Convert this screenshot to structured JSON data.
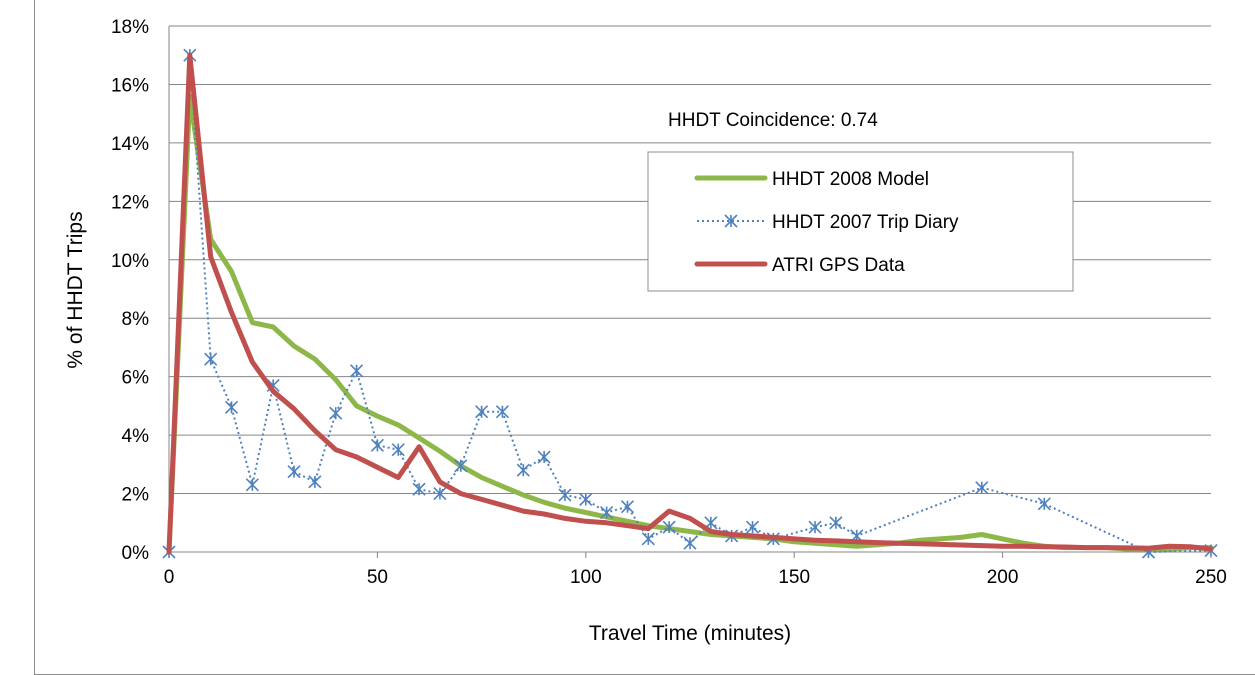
{
  "chart_data": {
    "type": "line",
    "title": "",
    "xlabel": "Travel Time (minutes)",
    "ylabel": "% of HHDT Trips",
    "xlim": [
      0,
      250
    ],
    "ylim": [
      0,
      18
    ],
    "x_ticks": [
      0,
      50,
      100,
      150,
      200,
      250
    ],
    "x_tick_labels": [
      "0",
      "50",
      "100",
      "150",
      "200",
      "250"
    ],
    "y_ticks": [
      0,
      2,
      4,
      6,
      8,
      10,
      12,
      14,
      16,
      18
    ],
    "y_tick_labels": [
      "0%",
      "2%",
      "4%",
      "6%",
      "8%",
      "10%",
      "12%",
      "14%",
      "16%",
      "18%"
    ],
    "grid": "horizontal",
    "legend_position": "upper-right",
    "annotation": "HHDT Coincidence: 0.74",
    "series": [
      {
        "name": "HHDT 2008 Model",
        "color": "#8db849",
        "style": "solid",
        "marker": "none",
        "points": [
          [
            0,
            0
          ],
          [
            5,
            15.6
          ],
          [
            10,
            10.7
          ],
          [
            15,
            9.6
          ],
          [
            20,
            7.85
          ],
          [
            25,
            7.7
          ],
          [
            30,
            7.05
          ],
          [
            35,
            6.6
          ],
          [
            40,
            5.9
          ],
          [
            45,
            5.0
          ],
          [
            50,
            4.65
          ],
          [
            55,
            4.35
          ],
          [
            60,
            3.9
          ],
          [
            65,
            3.45
          ],
          [
            70,
            2.95
          ],
          [
            75,
            2.55
          ],
          [
            80,
            2.25
          ],
          [
            85,
            1.95
          ],
          [
            90,
            1.7
          ],
          [
            95,
            1.5
          ],
          [
            100,
            1.35
          ],
          [
            105,
            1.2
          ],
          [
            110,
            1.05
          ],
          [
            115,
            0.9
          ],
          [
            120,
            0.8
          ],
          [
            125,
            0.7
          ],
          [
            130,
            0.6
          ],
          [
            135,
            0.55
          ],
          [
            140,
            0.5
          ],
          [
            145,
            0.45
          ],
          [
            150,
            0.35
          ],
          [
            155,
            0.3
          ],
          [
            160,
            0.25
          ],
          [
            165,
            0.2
          ],
          [
            170,
            0.25
          ],
          [
            175,
            0.3
          ],
          [
            180,
            0.4
          ],
          [
            185,
            0.45
          ],
          [
            190,
            0.5
          ],
          [
            195,
            0.6
          ],
          [
            200,
            0.45
          ],
          [
            205,
            0.3
          ],
          [
            210,
            0.2
          ],
          [
            215,
            0.15
          ],
          [
            220,
            0.15
          ],
          [
            225,
            0.15
          ],
          [
            230,
            0.1
          ],
          [
            235,
            0.1
          ],
          [
            240,
            0.1
          ],
          [
            245,
            0.15
          ],
          [
            250,
            0.15
          ]
        ]
      },
      {
        "name": "HHDT 2007 Trip Diary",
        "color": "#4f81bd",
        "style": "dotted",
        "marker": "asterisk",
        "points": [
          [
            0,
            0
          ],
          [
            5,
            17.0
          ],
          [
            10,
            6.6
          ],
          [
            15,
            4.95
          ],
          [
            20,
            2.3
          ],
          [
            25,
            5.7
          ],
          [
            30,
            2.75
          ],
          [
            35,
            2.4
          ],
          [
            40,
            4.75
          ],
          [
            45,
            6.2
          ],
          [
            50,
            3.65
          ],
          [
            55,
            3.5
          ],
          [
            60,
            2.15
          ],
          [
            65,
            2.0
          ],
          [
            70,
            2.95
          ],
          [
            75,
            4.8
          ],
          [
            80,
            4.8
          ],
          [
            85,
            2.8
          ],
          [
            90,
            3.25
          ],
          [
            95,
            1.95
          ],
          [
            100,
            1.8
          ],
          [
            105,
            1.35
          ],
          [
            110,
            1.55
          ],
          [
            115,
            0.45
          ],
          [
            120,
            0.85
          ],
          [
            125,
            0.3
          ],
          [
            130,
            1.0
          ],
          [
            135,
            0.55
          ],
          [
            140,
            0.85
          ],
          [
            145,
            0.45
          ],
          [
            155,
            0.85
          ],
          [
            160,
            1.0
          ],
          [
            165,
            0.55
          ],
          [
            195,
            2.2
          ],
          [
            210,
            1.65
          ],
          [
            235,
            0.0
          ],
          [
            250,
            0.05
          ]
        ]
      },
      {
        "name": "ATRI GPS Data",
        "color": "#c0504d",
        "style": "solid",
        "marker": "none",
        "points": [
          [
            0,
            0
          ],
          [
            5,
            17.0
          ],
          [
            10,
            10.1
          ],
          [
            15,
            8.2
          ],
          [
            20,
            6.5
          ],
          [
            25,
            5.5
          ],
          [
            30,
            4.9
          ],
          [
            35,
            4.15
          ],
          [
            40,
            3.5
          ],
          [
            45,
            3.25
          ],
          [
            50,
            2.9
          ],
          [
            55,
            2.55
          ],
          [
            60,
            3.6
          ],
          [
            65,
            2.4
          ],
          [
            70,
            2.0
          ],
          [
            75,
            1.8
          ],
          [
            80,
            1.6
          ],
          [
            85,
            1.4
          ],
          [
            90,
            1.3
          ],
          [
            95,
            1.15
          ],
          [
            100,
            1.05
          ],
          [
            105,
            1.0
          ],
          [
            110,
            0.9
          ],
          [
            115,
            0.8
          ],
          [
            120,
            1.4
          ],
          [
            125,
            1.15
          ],
          [
            130,
            0.7
          ],
          [
            135,
            0.6
          ],
          [
            140,
            0.55
          ],
          [
            145,
            0.5
          ],
          [
            150,
            0.45
          ],
          [
            155,
            0.4
          ],
          [
            160,
            0.38
          ],
          [
            165,
            0.35
          ],
          [
            170,
            0.32
          ],
          [
            175,
            0.3
          ],
          [
            180,
            0.28
          ],
          [
            185,
            0.26
          ],
          [
            190,
            0.24
          ],
          [
            195,
            0.22
          ],
          [
            200,
            0.2
          ],
          [
            205,
            0.2
          ],
          [
            210,
            0.18
          ],
          [
            215,
            0.17
          ],
          [
            220,
            0.15
          ],
          [
            225,
            0.15
          ],
          [
            230,
            0.14
          ],
          [
            235,
            0.13
          ],
          [
            240,
            0.2
          ],
          [
            245,
            0.18
          ],
          [
            250,
            0.1
          ]
        ]
      }
    ]
  }
}
